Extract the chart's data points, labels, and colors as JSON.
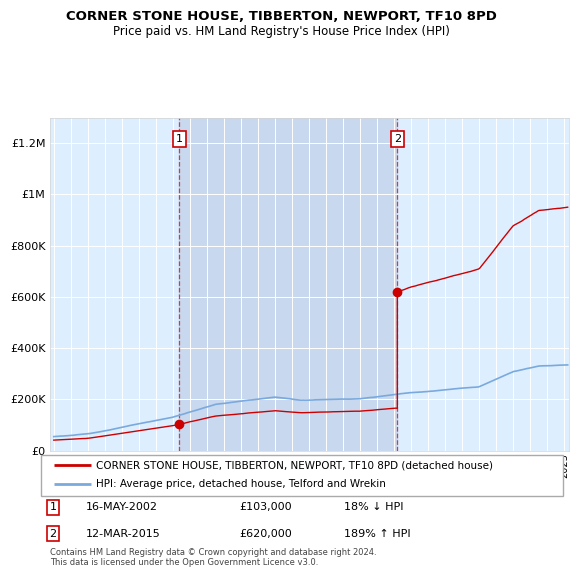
{
  "title": "CORNER STONE HOUSE, TIBBERTON, NEWPORT, TF10 8PD",
  "subtitle": "Price paid vs. HM Land Registry's House Price Index (HPI)",
  "hpi_label": "HPI: Average price, detached house, Telford and Wrekin",
  "property_label": "CORNER STONE HOUSE, TIBBERTON, NEWPORT, TF10 8PD (detached house)",
  "hpi_color": "#7aaadd",
  "property_color": "#cc0000",
  "background_color": "#ddeeff",
  "highlight_color": "#c8d8ee",
  "sale1_x": 2002.375,
  "sale1_y": 103000,
  "sale2_x": 2015.19,
  "sale2_y": 620000,
  "ylim": [
    0,
    1300000
  ],
  "xlim_start": 1994.8,
  "xlim_end": 2025.3,
  "yticks": [
    0,
    200000,
    400000,
    600000,
    800000,
    1000000,
    1200000
  ],
  "ytick_labels": [
    "£0",
    "£200K",
    "£400K",
    "£600K",
    "£800K",
    "£1M",
    "£1.2M"
  ],
  "footer": "Contains HM Land Registry data © Crown copyright and database right 2024.\nThis data is licensed under the Open Government Licence v3.0."
}
